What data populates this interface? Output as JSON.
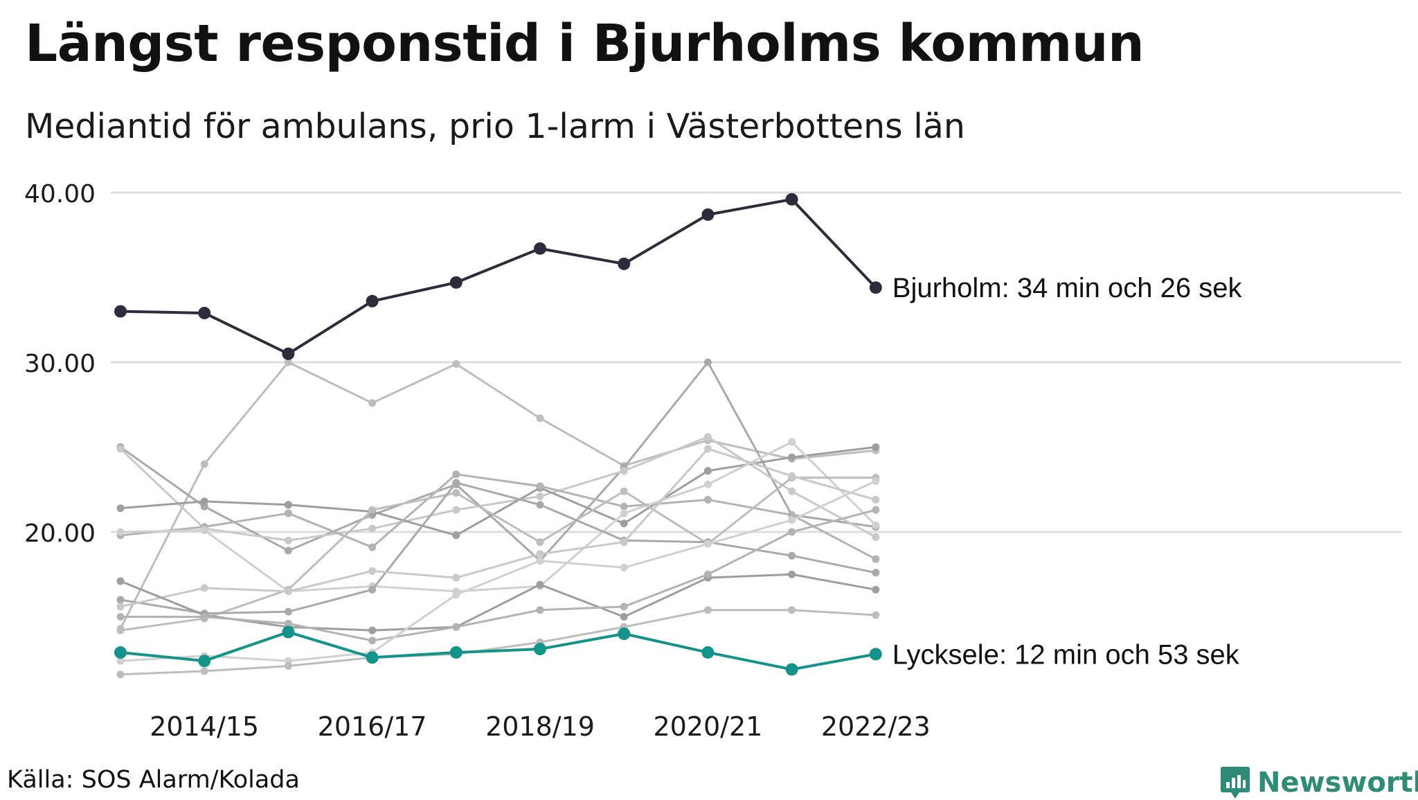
{
  "header": {
    "title": "Längst responstid i Bjurholms kommun",
    "subtitle": "Mediantid för ambulans, prio 1-larm i Västerbottens län"
  },
  "footer": {
    "source": "Källa: SOS Alarm/Kolada",
    "brand": "Newsworthy"
  },
  "colors": {
    "highlight_high": "#2e2b3c",
    "highlight_low": "#14938a",
    "background_lines": [
      "#bdbdbd",
      "#a9a9a9",
      "#c9c9c9",
      "#9e9e9e",
      "#b3b3b3",
      "#d0d0d0"
    ],
    "grid": "#dddddd",
    "brand": "#2e8b76"
  },
  "chart_data": {
    "type": "line",
    "ylim": [
      10,
      42
    ],
    "yticks": [
      "20.00",
      "30.00",
      "40.00"
    ],
    "ytick_values": [
      20,
      30,
      40
    ],
    "grid": true,
    "x": [
      "2013/14",
      "2014/15",
      "2015/16",
      "2016/17",
      "2017/18",
      "2018/19",
      "2019/20",
      "2020/21",
      "2021/22",
      "2022/23"
    ],
    "xtick_labels": [
      "2014/15",
      "2016/17",
      "2018/19",
      "2020/21",
      "2022/23"
    ],
    "xtick_indices": [
      1,
      3,
      5,
      7,
      9
    ],
    "highlight_series": [
      {
        "name": "Bjurholm",
        "label": "Bjurholm: 34 min och 26 sek",
        "color": "#2e2b3c",
        "values": [
          33.0,
          32.9,
          30.5,
          33.6,
          34.7,
          36.7,
          35.8,
          38.7,
          39.6,
          34.4
        ]
      },
      {
        "name": "Lycksele",
        "label": "Lycksele: 12 min och 53 sek",
        "color": "#14938a",
        "values": [
          12.9,
          12.4,
          14.1,
          12.6,
          12.9,
          13.1,
          14.0,
          12.9,
          11.9,
          12.8
        ]
      }
    ],
    "background_series": [
      [
        14.3,
        24.0,
        30.0,
        27.6,
        29.9,
        26.7,
        23.9,
        25.4,
        24.3,
        24.8
      ],
      [
        25.0,
        21.5,
        18.9,
        21.0,
        22.8,
        18.3,
        23.8,
        30.0,
        21.0,
        20.3
      ],
      [
        24.9,
        20.2,
        19.5,
        20.2,
        21.3,
        22.1,
        23.6,
        25.6,
        22.4,
        19.7
      ],
      [
        21.4,
        21.8,
        21.6,
        21.2,
        19.8,
        22.6,
        20.5,
        23.6,
        24.4,
        25.0
      ],
      [
        19.8,
        20.3,
        21.1,
        19.1,
        23.4,
        22.7,
        21.5,
        21.9,
        21.0,
        18.4
      ],
      [
        20.0,
        20.1,
        16.5,
        16.8,
        16.5,
        16.8,
        21.1,
        22.8,
        25.3,
        20.4
      ],
      [
        14.2,
        14.9,
        16.6,
        21.3,
        22.3,
        19.4,
        22.4,
        19.3,
        23.2,
        23.2
      ],
      [
        16.0,
        15.2,
        15.3,
        16.6,
        22.9,
        21.6,
        19.5,
        19.4,
        18.6,
        17.6
      ],
      [
        15.6,
        16.7,
        16.5,
        17.7,
        17.3,
        18.7,
        19.4,
        24.9,
        23.3,
        21.9
      ],
      [
        17.1,
        15.1,
        14.4,
        14.2,
        14.4,
        16.9,
        15.0,
        17.3,
        17.5,
        16.6
      ],
      [
        15.0,
        15.0,
        14.6,
        13.6,
        14.4,
        15.4,
        15.6,
        17.5,
        20.0,
        21.3
      ],
      [
        12.4,
        12.7,
        12.4,
        12.9,
        16.3,
        18.3,
        17.9,
        19.3,
        20.7,
        23.0
      ],
      [
        11.6,
        11.8,
        12.1,
        12.6,
        12.8,
        13.5,
        14.4,
        15.4,
        15.4,
        15.1
      ]
    ]
  }
}
